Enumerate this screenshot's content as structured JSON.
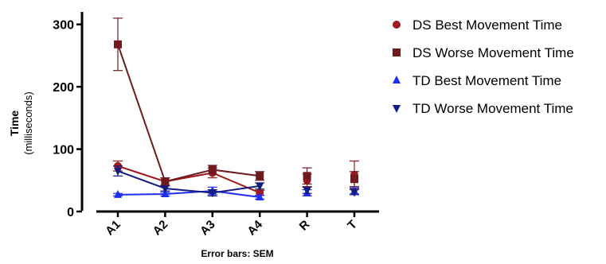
{
  "chart_data": {
    "type": "line",
    "title": "",
    "xlabel": "Error bars: SEM",
    "ylabel": "Time",
    "ylabel_sub": "(milliseconds)",
    "categories": [
      "A1",
      "A2",
      "A3",
      "A4",
      "R",
      "T"
    ],
    "ylim": [
      0,
      320
    ],
    "yticks": [
      0,
      100,
      200,
      300
    ],
    "grid": false,
    "legend_position": "right",
    "series": [
      {
        "name": "DS Best Movement Time",
        "color": "#a0191b",
        "marker": "circle",
        "values": [
          73,
          48,
          62,
          30,
          50,
          59
        ],
        "errors": [
          8,
          6,
          8,
          4,
          10,
          22
        ],
        "connected_through": 3
      },
      {
        "name": "DS Worse Movement Time",
        "color": "#6e1a1e",
        "marker": "square",
        "values": [
          268,
          48,
          67,
          57,
          57,
          52
        ],
        "errors": [
          42,
          6,
          7,
          7,
          13,
          12
        ],
        "connected_through": 3
      },
      {
        "name": "TD Best Movement Time",
        "color": "#1e2ef0",
        "marker": "triangle-up",
        "values": [
          27,
          28,
          33,
          23,
          30,
          33
        ],
        "errors": [
          2,
          3,
          6,
          3,
          5,
          5
        ],
        "connected_through": 3
      },
      {
        "name": "TD Worse Movement Time",
        "color": "#141c80",
        "marker": "triangle-down",
        "values": [
          65,
          37,
          30,
          41,
          34,
          31
        ],
        "errors": [
          8,
          4,
          5,
          5,
          5,
          4
        ],
        "connected_through": 3
      }
    ]
  }
}
